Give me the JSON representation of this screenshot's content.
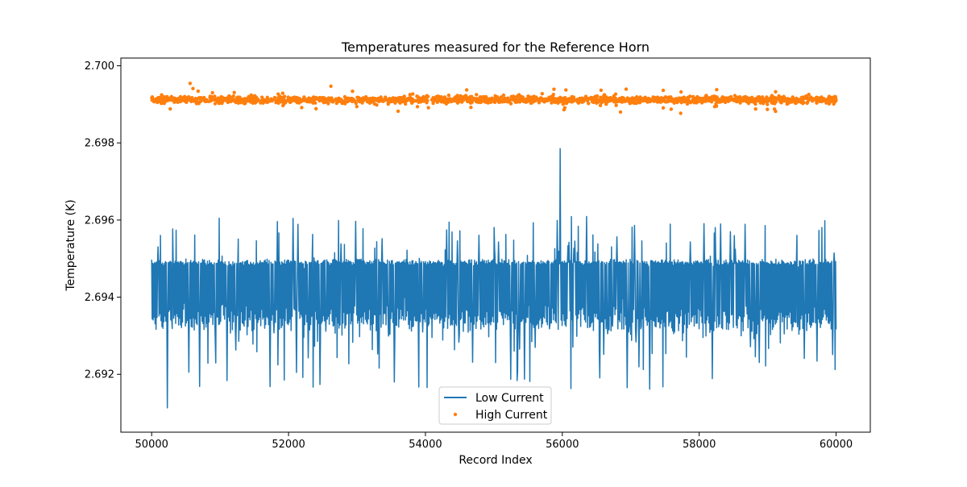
{
  "chart_data": {
    "type": "line",
    "title": "Temperatures measured for the Reference Horn",
    "xlabel": "Record Index",
    "ylabel": "Temperature (K)",
    "xlim": [
      49550,
      60500
    ],
    "ylim": [
      2.6905,
      2.7002
    ],
    "xticks": [
      50000,
      52000,
      54000,
      56000,
      58000,
      60000
    ],
    "xtick_labels": [
      "50000",
      "52000",
      "54000",
      "56000",
      "58000",
      "60000"
    ],
    "yticks": [
      2.692,
      2.694,
      2.696,
      2.698,
      2.7
    ],
    "ytick_labels": [
      "2.692",
      "2.694",
      "2.696",
      "2.698",
      "2.700"
    ],
    "grid": false,
    "legend": {
      "position": "bottom-center",
      "entries": [
        "Low Current",
        "High Current"
      ]
    },
    "series": [
      {
        "name": "Low Current",
        "kind": "line",
        "color": "#1f77b4",
        "x_start": 50000,
        "x_end": 60000,
        "baseline_low": 2.6934,
        "baseline_high": 2.6949,
        "noise_range": [
          2.6912,
          2.6962
        ],
        "peak": {
          "x": 55970,
          "y": 2.69785
        },
        "minimum": {
          "x": 50230,
          "y": 2.69113
        }
      },
      {
        "name": "High Current",
        "kind": "scatter",
        "color": "#ff7f0e",
        "x_start": 50000,
        "x_end": 60000,
        "mean": 2.69912,
        "spread": 8e-05,
        "range": [
          2.69872,
          2.69958
        ]
      }
    ]
  }
}
